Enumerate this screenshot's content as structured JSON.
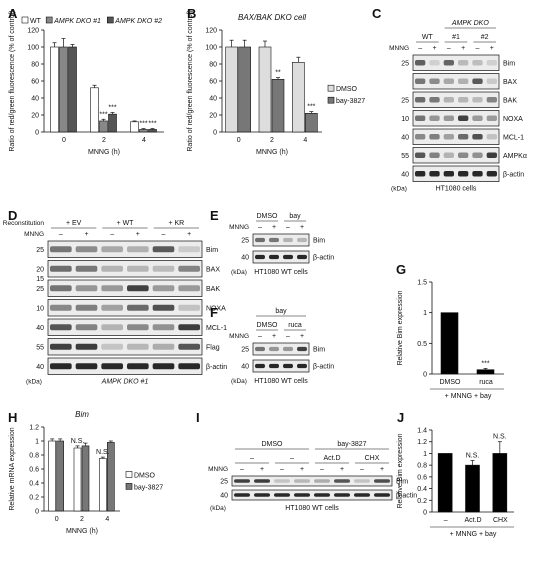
{
  "panels": {
    "A": "A",
    "B": "B",
    "C": "C",
    "D": "D",
    "E": "E",
    "F": "F",
    "G": "G",
    "H": "H",
    "I": "I",
    "J": "J"
  },
  "chart_data": [
    {
      "id": "A",
      "type": "bar",
      "title": "",
      "xlabel": "MNNG (h)",
      "ylabel": "Ratio of red/green fluorescence (% of control)",
      "ylim": [
        0,
        120
      ],
      "yticks": [
        0,
        20,
        40,
        60,
        80,
        100,
        120
      ],
      "categories": [
        "0",
        "2",
        "4"
      ],
      "series": [
        {
          "name": "WT",
          "color": "#ffffff",
          "values": [
            100,
            52,
            12
          ],
          "errors": [
            5,
            3,
            1
          ]
        },
        {
          "name": "AMPK DKO #1",
          "color": "#888888",
          "values": [
            100,
            13,
            3
          ],
          "errors": [
            10,
            2,
            1
          ]
        },
        {
          "name": "AMPK DKO #2",
          "color": "#555555",
          "values": [
            100,
            21,
            3
          ],
          "errors": [
            3,
            2,
            1
          ]
        }
      ],
      "annotations": [
        {
          "category": "2",
          "series": 1,
          "text": "***"
        },
        {
          "category": "2",
          "series": 2,
          "text": "***"
        },
        {
          "category": "4",
          "series": 1,
          "text": "***"
        },
        {
          "category": "4",
          "series": 2,
          "text": "***"
        }
      ],
      "legend_position": "top"
    },
    {
      "id": "B",
      "type": "bar",
      "title": "BAX/BAK DKO cell",
      "xlabel": "MNNG (h)",
      "ylabel": "Ratio of red/green fluorescence (% of control)",
      "ylim": [
        0,
        120
      ],
      "yticks": [
        0,
        20,
        40,
        60,
        80,
        100,
        120
      ],
      "categories": [
        "0",
        "2",
        "4"
      ],
      "series": [
        {
          "name": "DMSO",
          "color": "#dddddd",
          "values": [
            100,
            100,
            82
          ],
          "errors": [
            8,
            7,
            6
          ]
        },
        {
          "name": "bay-3827",
          "color": "#777777",
          "values": [
            100,
            62,
            22
          ],
          "errors": [
            8,
            2,
            2
          ]
        }
      ],
      "annotations": [
        {
          "category": "2",
          "series": 1,
          "text": "**"
        },
        {
          "category": "4",
          "series": 1,
          "text": "***"
        }
      ],
      "legend_position": "right"
    },
    {
      "id": "G",
      "type": "bar",
      "title": "",
      "xlabel": "+ MNNG + bay",
      "ylabel": "Relative Bim expression",
      "ylim": [
        0,
        1.5
      ],
      "yticks": [
        0,
        0.5,
        1,
        1.5
      ],
      "categories": [
        "DMSO",
        "ruca"
      ],
      "series": [
        {
          "name": "",
          "color": "#000000",
          "values": [
            1.0,
            0.07
          ],
          "errors": [
            0,
            0.02
          ]
        }
      ],
      "annotations": [
        {
          "category": "ruca",
          "series": 0,
          "text": "***"
        }
      ]
    },
    {
      "id": "H",
      "type": "bar",
      "title": "Bim",
      "xlabel": "MNNG (h)",
      "ylabel": "Relative mRNA expression",
      "ylim": [
        0,
        1.2
      ],
      "yticks": [
        0,
        0.2,
        0.4,
        0.6,
        0.8,
        1,
        1.2
      ],
      "categories": [
        "0",
        "2",
        "4"
      ],
      "series": [
        {
          "name": "DMSO",
          "color": "#ffffff",
          "values": [
            1.0,
            0.9,
            0.75
          ],
          "errors": [
            0.03,
            0.03,
            0.02
          ]
        },
        {
          "name": "bay-3827",
          "color": "#777777",
          "values": [
            1.0,
            0.93,
            0.98
          ],
          "errors": [
            0.03,
            0.04,
            0.02
          ]
        }
      ],
      "annotations": [
        {
          "category": "2",
          "series": 0,
          "text": "N.S."
        },
        {
          "category": "4",
          "series": 0,
          "text": "N.S."
        }
      ],
      "legend_position": "right"
    },
    {
      "id": "J",
      "type": "bar",
      "title": "",
      "xlabel": "+ MNNG + bay",
      "ylabel": "Relative Bim expression",
      "ylim": [
        0,
        1.4
      ],
      "yticks": [
        0,
        0.2,
        0.4,
        0.6,
        0.8,
        1,
        1.2,
        1.4
      ],
      "categories": [
        "–",
        "Act.D",
        "CHX"
      ],
      "series": [
        {
          "name": "",
          "color": "#000000",
          "values": [
            1.0,
            0.8,
            1.0
          ],
          "errors": [
            0,
            0.08,
            0.2
          ]
        }
      ],
      "annotations": [
        {
          "category": "Act.D",
          "series": 0,
          "text": "N.S."
        },
        {
          "category": "CHX",
          "series": 0,
          "text": "N.S."
        }
      ]
    }
  ],
  "blots": {
    "C": {
      "group_header": "AMPK DKO",
      "lanes_header": [
        "WT",
        "#1",
        "#2"
      ],
      "treatment_label": "MNNG",
      "treatment": [
        "–",
        "+",
        "–",
        "+",
        "–",
        "+"
      ],
      "rows": [
        {
          "label": "Bim",
          "marker": "25"
        },
        {
          "label": "BAX",
          "marker": ""
        },
        {
          "label": "BAK",
          "marker": "25"
        },
        {
          "label": "NOXA",
          "marker": "10"
        },
        {
          "label": "MCL-1",
          "marker": "40"
        },
        {
          "label": "AMPKα",
          "marker": "55"
        },
        {
          "label": "β-actin",
          "marker": "40"
        }
      ],
      "kda": "(kDa)",
      "caption": "HT1080 cells"
    },
    "D": {
      "header_label": "Reconstitution",
      "lanes_header": [
        "+ EV",
        "+ WT",
        "+ KR"
      ],
      "treatment_label": "MNNG",
      "treatment": [
        "–",
        "+",
        "–",
        "+",
        "–",
        "+"
      ],
      "rows": [
        {
          "label": "Bim",
          "marker": "25"
        },
        {
          "label": "BAX",
          "marker": "20"
        },
        {
          "label": "BAK",
          "marker": "25"
        },
        {
          "label": "NOXA",
          "marker": "10"
        },
        {
          "label": "MCL-1",
          "marker": "40"
        },
        {
          "label": "Flag",
          "marker": "55"
        },
        {
          "label": "β-actin",
          "marker": "40"
        }
      ],
      "extra_markers": [
        "15"
      ],
      "kda": "(kDa)",
      "caption": "AMPK DKO #1"
    },
    "E": {
      "lanes_header": [
        "DMSO",
        "bay"
      ],
      "treatment_label": "MNNG",
      "treatment": [
        "–",
        "+",
        "–",
        "+"
      ],
      "rows": [
        {
          "label": "Bim",
          "marker": "25"
        },
        {
          "label": "β-actin",
          "marker": "40"
        }
      ],
      "kda": "(kDa)",
      "caption": "HT1080 WT cells"
    },
    "F": {
      "group_header": "bay",
      "lanes_header": [
        "DMSO",
        "ruca"
      ],
      "treatment_label": "MNNG",
      "treatment": [
        "–",
        "+",
        "–",
        "+"
      ],
      "rows": [
        {
          "label": "Bim",
          "marker": "25"
        },
        {
          "label": "β-actin",
          "marker": "40"
        }
      ],
      "kda": "(kDa)",
      "caption": "HT1080 WT cells"
    },
    "I": {
      "group_header_left": "DMSO",
      "group_header_right": "bay-3827",
      "lanes_header": [
        "–",
        "–",
        "Act.D",
        "CHX"
      ],
      "treatment_label": "MNNG",
      "treatment": [
        "–",
        "+",
        "–",
        "+",
        "–",
        "+",
        "–",
        "+"
      ],
      "rows": [
        {
          "label": "Bim",
          "marker": "25"
        },
        {
          "label": "β-actin",
          "marker": "40"
        }
      ],
      "kda": "(kDa)",
      "caption": "HT1080 WT cells"
    }
  }
}
